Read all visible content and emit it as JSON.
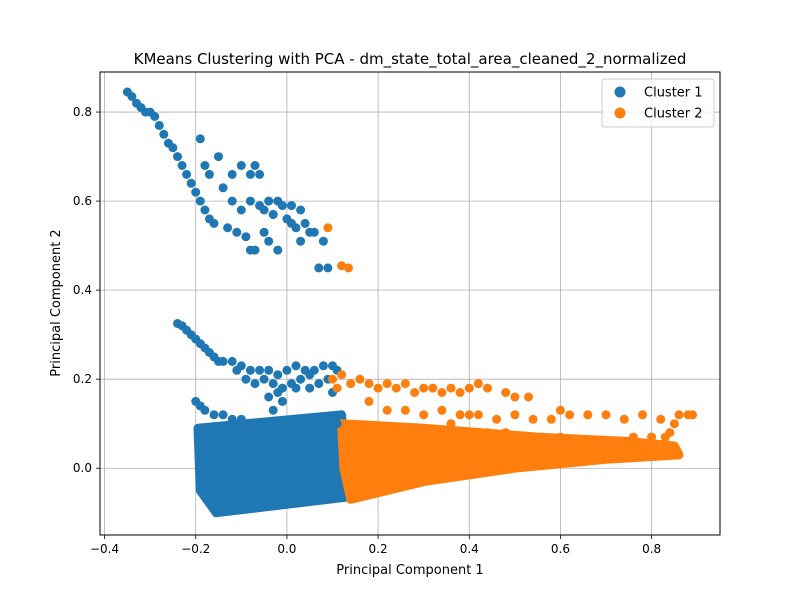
{
  "chart_data": {
    "type": "scatter",
    "title": "KMeans Clustering with PCA - dm_state_total_area_cleaned_2_normalized",
    "xlabel": "Principal Component 1",
    "ylabel": "Principal Component 2",
    "xlim": [
      -0.41,
      0.95
    ],
    "ylim": [
      -0.15,
      0.89
    ],
    "xticks": [
      -0.4,
      -0.2,
      0.0,
      0.2,
      0.4,
      0.6,
      0.8
    ],
    "yticks": [
      0.0,
      0.2,
      0.4,
      0.6,
      0.8
    ],
    "xtick_labels": [
      "−0.4",
      "−0.2",
      "0.0",
      "0.2",
      "0.4",
      "0.6",
      "0.8"
    ],
    "ytick_labels": [
      "0.0",
      "0.2",
      "0.4",
      "0.6",
      "0.8"
    ],
    "grid": true,
    "legend_position": "top-right",
    "series": [
      {
        "name": "Cluster 1",
        "color": "#1f77b4",
        "points": [
          [
            -0.35,
            0.845
          ],
          [
            -0.34,
            0.835
          ],
          [
            -0.33,
            0.82
          ],
          [
            -0.32,
            0.81
          ],
          [
            -0.31,
            0.8
          ],
          [
            -0.3,
            0.8
          ],
          [
            -0.29,
            0.79
          ],
          [
            -0.28,
            0.77
          ],
          [
            -0.27,
            0.75
          ],
          [
            -0.26,
            0.73
          ],
          [
            -0.25,
            0.72
          ],
          [
            -0.24,
            0.7
          ],
          [
            -0.23,
            0.68
          ],
          [
            -0.22,
            0.66
          ],
          [
            -0.21,
            0.64
          ],
          [
            -0.2,
            0.62
          ],
          [
            -0.19,
            0.6
          ],
          [
            -0.18,
            0.58
          ],
          [
            -0.17,
            0.56
          ],
          [
            -0.16,
            0.55
          ],
          [
            -0.19,
            0.74
          ],
          [
            -0.18,
            0.68
          ],
          [
            -0.17,
            0.66
          ],
          [
            -0.15,
            0.7
          ],
          [
            -0.14,
            0.63
          ],
          [
            -0.12,
            0.66
          ],
          [
            -0.1,
            0.68
          ],
          [
            -0.08,
            0.66
          ],
          [
            -0.07,
            0.68
          ],
          [
            -0.06,
            0.66
          ],
          [
            -0.12,
            0.6
          ],
          [
            -0.1,
            0.58
          ],
          [
            -0.08,
            0.6
          ],
          [
            -0.06,
            0.59
          ],
          [
            -0.04,
            0.6
          ],
          [
            -0.02,
            0.6
          ],
          [
            -0.01,
            0.59
          ],
          [
            0.01,
            0.59
          ],
          [
            -0.03,
            0.57
          ],
          [
            -0.05,
            0.58
          ],
          [
            -0.13,
            0.54
          ],
          [
            -0.11,
            0.53
          ],
          [
            -0.09,
            0.52
          ],
          [
            -0.08,
            0.49
          ],
          [
            -0.07,
            0.49
          ],
          [
            -0.05,
            0.53
          ],
          [
            -0.04,
            0.51
          ],
          [
            -0.03,
            0.57
          ],
          [
            0.0,
            0.56
          ],
          [
            0.01,
            0.55
          ],
          [
            0.03,
            0.58
          ],
          [
            0.04,
            0.55
          ],
          [
            0.05,
            0.53
          ],
          [
            0.06,
            0.53
          ],
          [
            0.03,
            0.51
          ],
          [
            0.08,
            0.51
          ],
          [
            0.07,
            0.45
          ],
          [
            0.09,
            0.45
          ],
          [
            -0.02,
            0.49
          ],
          [
            0.02,
            0.54
          ],
          [
            -0.24,
            0.325
          ],
          [
            -0.23,
            0.32
          ],
          [
            -0.22,
            0.31
          ],
          [
            -0.21,
            0.3
          ],
          [
            -0.2,
            0.29
          ],
          [
            -0.19,
            0.28
          ],
          [
            -0.18,
            0.27
          ],
          [
            -0.17,
            0.26
          ],
          [
            -0.16,
            0.25
          ],
          [
            -0.15,
            0.24
          ],
          [
            -0.14,
            0.24
          ],
          [
            -0.12,
            0.24
          ],
          [
            -0.1,
            0.23
          ],
          [
            -0.08,
            0.22
          ],
          [
            -0.06,
            0.22
          ],
          [
            -0.04,
            0.22
          ],
          [
            -0.02,
            0.21
          ],
          [
            0.0,
            0.22
          ],
          [
            0.02,
            0.23
          ],
          [
            0.04,
            0.22
          ],
          [
            0.06,
            0.22
          ],
          [
            0.08,
            0.23
          ],
          [
            0.1,
            0.23
          ],
          [
            0.11,
            0.22
          ],
          [
            -0.11,
            0.22
          ],
          [
            -0.09,
            0.2
          ],
          [
            -0.07,
            0.19
          ],
          [
            -0.05,
            0.2
          ],
          [
            -0.03,
            0.19
          ],
          [
            -0.01,
            0.18
          ],
          [
            0.01,
            0.19
          ],
          [
            0.03,
            0.2
          ],
          [
            0.05,
            0.21
          ],
          [
            0.07,
            0.19
          ],
          [
            0.09,
            0.2
          ],
          [
            0.1,
            0.17
          ],
          [
            -0.02,
            0.17
          ],
          [
            -0.04,
            0.16
          ],
          [
            0.02,
            0.18
          ],
          [
            0.05,
            0.18
          ],
          [
            -0.2,
            0.15
          ],
          [
            -0.19,
            0.14
          ],
          [
            -0.18,
            0.13
          ],
          [
            -0.16,
            0.12
          ],
          [
            -0.14,
            0.12
          ],
          [
            -0.12,
            0.11
          ],
          [
            -0.1,
            0.11
          ],
          [
            -0.08,
            0.1
          ],
          [
            -0.06,
            0.1
          ],
          [
            -0.04,
            0.1
          ],
          [
            -0.02,
            0.1
          ],
          [
            0.0,
            0.1
          ],
          [
            0.02,
            0.11
          ],
          [
            0.04,
            0.1
          ],
          [
            0.06,
            0.1
          ],
          [
            0.08,
            0.11
          ],
          [
            0.1,
            0.11
          ],
          [
            0.11,
            0.1
          ],
          [
            -0.01,
            0.15
          ],
          [
            -0.03,
            0.13
          ]
        ],
        "regions": [
          [
            [
              -0.195,
              0.09
            ],
            [
              0.12,
              0.12
            ],
            [
              0.13,
              -0.065
            ],
            [
              -0.155,
              -0.1
            ],
            [
              -0.19,
              -0.05
            ]
          ]
        ]
      },
      {
        "name": "Cluster 2",
        "color": "#ff7f0e",
        "points": [
          [
            0.09,
            0.54
          ],
          [
            0.12,
            0.455
          ],
          [
            0.135,
            0.45
          ],
          [
            0.1,
            0.2
          ],
          [
            0.11,
            0.18
          ],
          [
            0.12,
            0.21
          ],
          [
            0.14,
            0.19
          ],
          [
            0.16,
            0.2
          ],
          [
            0.18,
            0.19
          ],
          [
            0.2,
            0.18
          ],
          [
            0.22,
            0.19
          ],
          [
            0.24,
            0.18
          ],
          [
            0.26,
            0.19
          ],
          [
            0.28,
            0.17
          ],
          [
            0.3,
            0.18
          ],
          [
            0.32,
            0.18
          ],
          [
            0.34,
            0.17
          ],
          [
            0.36,
            0.18
          ],
          [
            0.38,
            0.17
          ],
          [
            0.4,
            0.18
          ],
          [
            0.42,
            0.19
          ],
          [
            0.44,
            0.18
          ],
          [
            0.48,
            0.17
          ],
          [
            0.5,
            0.16
          ],
          [
            0.53,
            0.16
          ],
          [
            0.18,
            0.15
          ],
          [
            0.22,
            0.13
          ],
          [
            0.26,
            0.13
          ],
          [
            0.3,
            0.12
          ],
          [
            0.34,
            0.13
          ],
          [
            0.38,
            0.12
          ],
          [
            0.42,
            0.12
          ],
          [
            0.46,
            0.11
          ],
          [
            0.5,
            0.12
          ],
          [
            0.54,
            0.11
          ],
          [
            0.58,
            0.11
          ],
          [
            0.6,
            0.13
          ],
          [
            0.62,
            0.12
          ],
          [
            0.66,
            0.12
          ],
          [
            0.7,
            0.12
          ],
          [
            0.74,
            0.11
          ],
          [
            0.78,
            0.12
          ],
          [
            0.82,
            0.11
          ],
          [
            0.85,
            0.1
          ],
          [
            0.86,
            0.12
          ],
          [
            0.88,
            0.12
          ],
          [
            0.89,
            0.12
          ],
          [
            0.84,
            0.08
          ],
          [
            0.83,
            0.07
          ],
          [
            0.8,
            0.07
          ],
          [
            0.76,
            0.07
          ],
          [
            0.72,
            0.06
          ],
          [
            0.68,
            0.06
          ],
          [
            0.64,
            0.06
          ],
          [
            0.6,
            0.07
          ],
          [
            0.56,
            0.07
          ],
          [
            0.52,
            0.07
          ],
          [
            0.48,
            0.08
          ],
          [
            0.44,
            0.08
          ],
          [
            0.4,
            0.07
          ],
          [
            0.36,
            0.06
          ],
          [
            0.32,
            0.08
          ],
          [
            0.28,
            0.07
          ],
          [
            0.24,
            0.07
          ],
          [
            0.2,
            0.08
          ],
          [
            0.16,
            0.07
          ],
          [
            0.13,
            0.06
          ],
          [
            0.14,
            0.03
          ],
          [
            0.4,
            0.12
          ],
          [
            0.36,
            0.1
          ]
        ],
        "regions": [
          [
            [
              0.12,
              0.1
            ],
            [
              0.3,
              0.09
            ],
            [
              0.55,
              0.07
            ],
            [
              0.75,
              0.06
            ],
            [
              0.85,
              0.05
            ],
            [
              0.86,
              0.03
            ],
            [
              0.7,
              0.02
            ],
            [
              0.5,
              0.0
            ],
            [
              0.3,
              -0.03
            ],
            [
              0.14,
              -0.07
            ],
            [
              0.125,
              0.0
            ]
          ]
        ]
      }
    ]
  }
}
